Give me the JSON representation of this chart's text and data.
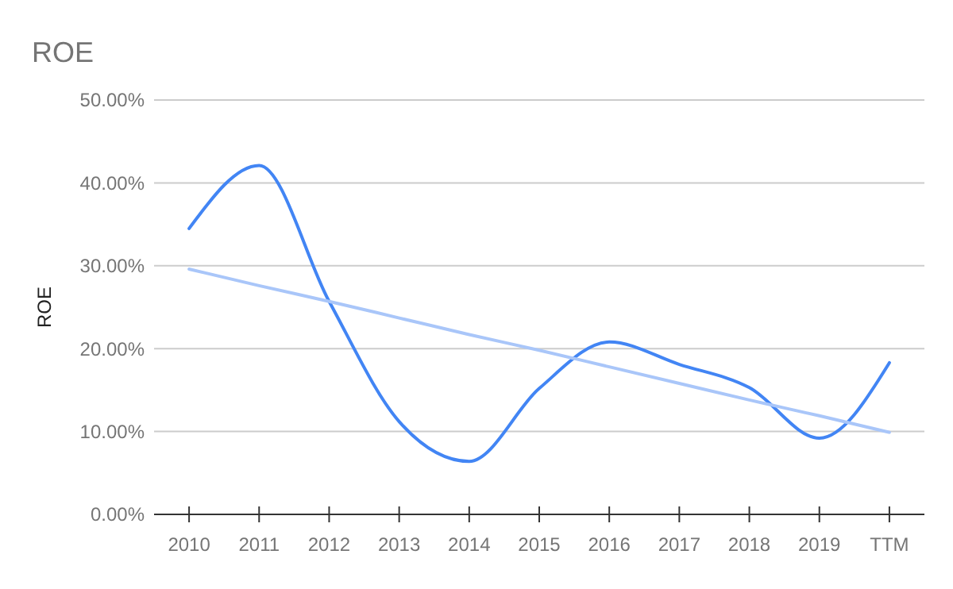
{
  "chart_data": {
    "type": "line",
    "title": "ROE",
    "ylabel": "ROE",
    "categories": [
      "2010",
      "2011",
      "2012",
      "2013",
      "2014",
      "2015",
      "2016",
      "2017",
      "2018",
      "2019",
      "TTM"
    ],
    "series": [
      {
        "color": "#4285f4",
        "values": [
          34.5,
          42.1,
          25.7,
          11.2,
          6.4,
          15.2,
          20.8,
          18.1,
          15.3,
          9.2,
          18.3
        ]
      },
      {
        "type": "line",
        "color": "#a9c6f9",
        "values": [
          29.6,
          27.6,
          25.7,
          23.7,
          21.7,
          19.8,
          17.8,
          15.8,
          13.8,
          11.9,
          9.9
        ]
      }
    ],
    "ylim": [
      0,
      50
    ],
    "yticks": [
      {
        "value": 0,
        "label": "0.00%"
      },
      {
        "value": 10,
        "label": "10.00%"
      },
      {
        "value": 20,
        "label": "20.00%"
      },
      {
        "value": 30,
        "label": "30.00%"
      },
      {
        "value": 40,
        "label": "40.00%"
      },
      {
        "value": 50,
        "label": "50.00%"
      }
    ],
    "grid": "y",
    "marker": "none",
    "line_style": "solid"
  }
}
